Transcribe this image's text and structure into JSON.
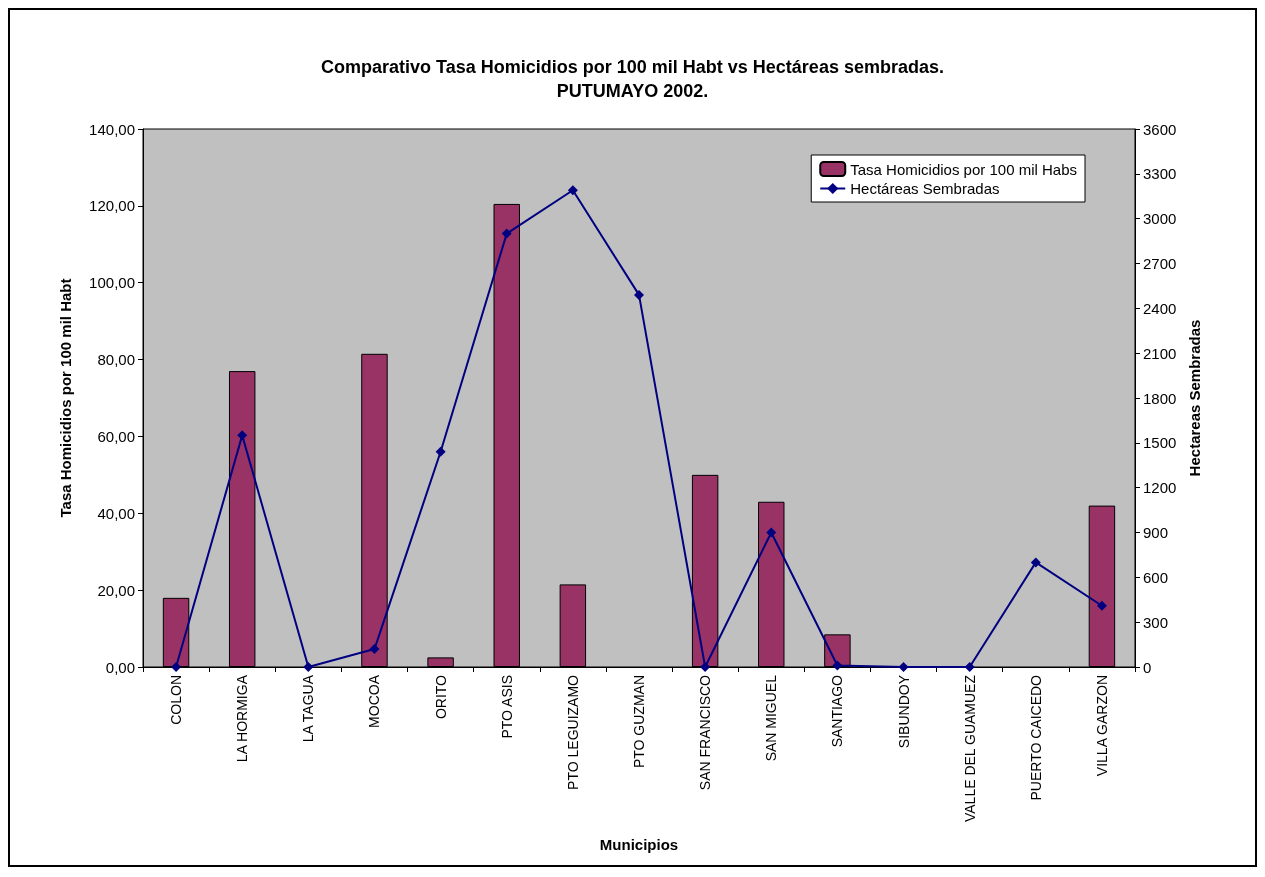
{
  "chart_data": {
    "type": "bar",
    "title": "Comparativo Tasa Homicidios por 100 mil Habt vs Hectáreas sembradas.\nPUTUMAYO 2002.",
    "xlabel": "Municipios",
    "ylabel": "Tasa Homicidios por 100 mil Habt",
    "y2label": "Hectareas Sembradas",
    "categories": [
      "COLON",
      "LA HORMIGA",
      "LA TAGUA",
      "MOCOA",
      "ORITO",
      "PTO ASIS",
      "PTO LEGUIZAMO",
      "PTO GUZMAN",
      "SAN FRANCISCO",
      "SAN MIGUEL",
      "SANTIAGO",
      "SIBUNDOY",
      "VALLE DEL GUAMUEZ",
      "PUERTO CAICEDO",
      "VILLA GARZON"
    ],
    "series": [
      {
        "name": "Tasa Homicidios por 100 mil Habs",
        "color": "#993366",
        "values": [
          18,
          77,
          0,
          81.5,
          2.5,
          120.5,
          21.5,
          0,
          50,
          43,
          8.5,
          0,
          0,
          0,
          42
        ]
      },
      {
        "name": "Hectáreas Sembradas",
        "type": "line",
        "axis": "y2",
        "color": "#000080",
        "marker": "diamond",
        "values": [
          0,
          1550,
          0,
          120,
          1440,
          2900,
          3190,
          2490,
          0,
          900,
          10,
          0,
          0,
          700,
          410
        ]
      }
    ],
    "ylim": [
      0,
      140
    ],
    "yticks": [
      {
        "value": 0,
        "label": "0,00"
      },
      {
        "value": 20,
        "label": "20,00"
      },
      {
        "value": 40,
        "label": "40,00"
      },
      {
        "value": 60,
        "label": "60,00"
      },
      {
        "value": 80,
        "label": "80,00"
      },
      {
        "value": 100,
        "label": "100,00"
      },
      {
        "value": 120,
        "label": "120,00"
      },
      {
        "value": 140,
        "label": "140,00"
      }
    ],
    "y2lim": [
      0,
      3600
    ],
    "y2ticks": [
      0,
      300,
      600,
      900,
      1200,
      1500,
      1800,
      2100,
      2400,
      2700,
      3000,
      3300,
      3600
    ],
    "grid": false,
    "legend": "top right"
  }
}
